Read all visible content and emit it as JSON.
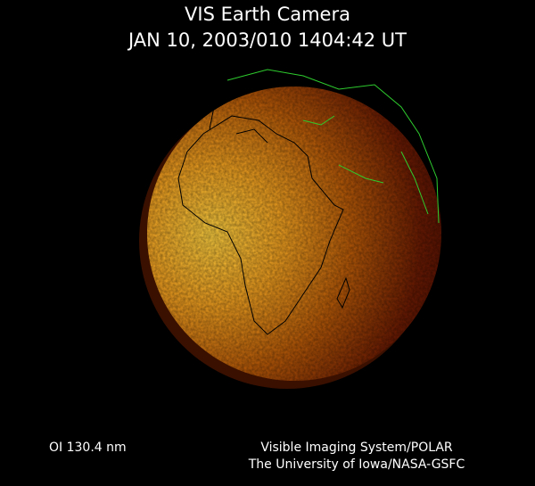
{
  "header": {
    "title": "VIS Earth Camera",
    "timestamp": "JAN 10, 2003/010 1404:42 UT"
  },
  "footer": {
    "band": "OI  130.4 nm",
    "credit_line1": "Visible Imaging System/POLAR",
    "credit_line2": "The University of Iowa/NASA-GSFC"
  },
  "colors": {
    "background": "#000000",
    "dayside": "#f5b320",
    "nightside": "#3a0600",
    "coastline_day": "#000000",
    "coastline_night": "#2ecc2e"
  }
}
